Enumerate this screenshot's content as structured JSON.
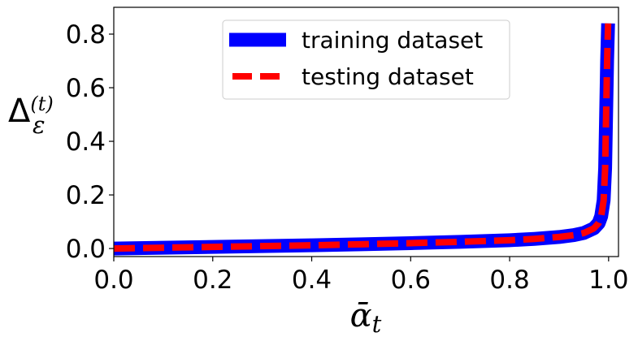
{
  "chart_data": {
    "type": "line",
    "xlabel": "ᾱ",
    "xlabel_sub": "t",
    "ylabel": "Δ",
    "ylabel_sub": "ε",
    "ylabel_sup": "(t)",
    "xlim": [
      0.0,
      1.02
    ],
    "ylim": [
      -0.03,
      0.9
    ],
    "xticks": [
      "0.0",
      "0.2",
      "0.4",
      "0.6",
      "0.8",
      "1.0"
    ],
    "xtick_values": [
      0.0,
      0.2,
      0.4,
      0.6,
      0.8,
      1.0
    ],
    "yticks": [
      "0.0",
      "0.2",
      "0.4",
      "0.6",
      "0.8"
    ],
    "ytick_values": [
      0.0,
      0.2,
      0.4,
      0.6,
      0.8
    ],
    "grid": false,
    "legend_position": "top-center",
    "series": [
      {
        "name": "training dataset",
        "color": "#0000ff",
        "style": "solid",
        "x": [
          0.0,
          0.1,
          0.2,
          0.3,
          0.4,
          0.5,
          0.6,
          0.7,
          0.8,
          0.85,
          0.9,
          0.93,
          0.95,
          0.97,
          0.98,
          0.985,
          0.99,
          0.993,
          0.995,
          0.997,
          0.999
        ],
        "y": [
          0.0,
          0.003,
          0.006,
          0.009,
          0.012,
          0.016,
          0.02,
          0.025,
          0.031,
          0.036,
          0.043,
          0.05,
          0.058,
          0.075,
          0.095,
          0.12,
          0.18,
          0.3,
          0.5,
          0.7,
          0.84
        ]
      },
      {
        "name": "testing dataset",
        "color": "#ff0000",
        "style": "dashed",
        "x": [
          0.0,
          0.1,
          0.2,
          0.3,
          0.4,
          0.5,
          0.6,
          0.7,
          0.8,
          0.85,
          0.9,
          0.93,
          0.95,
          0.97,
          0.98,
          0.985,
          0.99,
          0.993,
          0.995,
          0.997,
          0.999
        ],
        "y": [
          0.0,
          0.003,
          0.006,
          0.009,
          0.012,
          0.016,
          0.02,
          0.025,
          0.031,
          0.036,
          0.043,
          0.05,
          0.058,
          0.075,
          0.095,
          0.12,
          0.18,
          0.3,
          0.5,
          0.7,
          0.84
        ]
      }
    ]
  }
}
